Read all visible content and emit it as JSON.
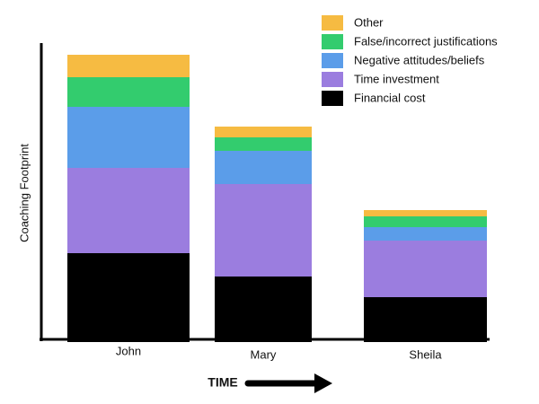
{
  "chart_data": {
    "type": "stacked_bar",
    "y_label": "Coaching Footprint",
    "x_label": "TIME",
    "categories": [
      "John",
      "Mary",
      "Sheila"
    ],
    "series": [
      {
        "name": "Financial cost",
        "color": "#000000",
        "values": [
          96,
          70,
          47
        ]
      },
      {
        "name": "Time investment",
        "color": "#9b7ddf",
        "values": [
          95,
          103,
          63
        ]
      },
      {
        "name": "Negative attitudes/beliefs",
        "color": "#5b9de9",
        "values": [
          68,
          37,
          15
        ]
      },
      {
        "name": "False/incorrect justifications",
        "color": "#33cc6e",
        "values": [
          33,
          15,
          12
        ]
      },
      {
        "name": "Other",
        "color": "#f6bb42",
        "values": [
          25,
          12,
          7
        ]
      }
    ],
    "ylim": [
      0,
      330
    ]
  }
}
